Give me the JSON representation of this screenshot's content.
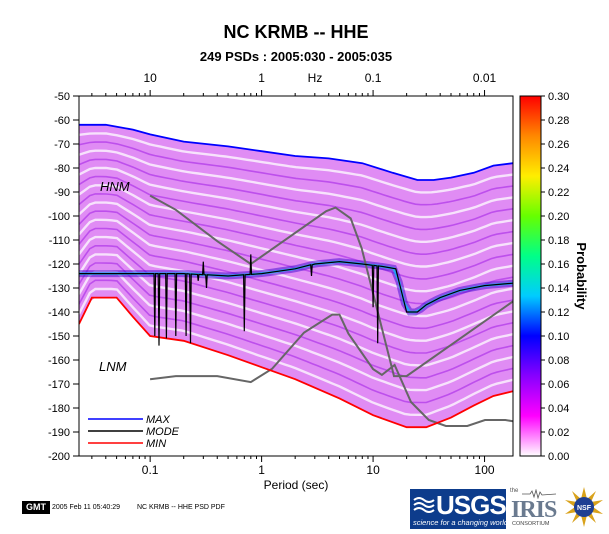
{
  "chart_data": {
    "type": "heatmap",
    "title": "NC KRMB -- HHE",
    "subtitle": "249 PSDs : 2005:030 - 2005:035",
    "xlabel": "Period (sec)",
    "top_xlabel": "Hz",
    "ylabel": "",
    "xscale": "log",
    "xlim": [
      0.023,
      180
    ],
    "ylim": [
      -200,
      -50
    ],
    "x_ticks": [
      {
        "value": 0.1,
        "label": "0.1"
      },
      {
        "value": 1,
        "label": "1"
      },
      {
        "value": 10,
        "label": "10"
      },
      {
        "value": 100,
        "label": "100"
      }
    ],
    "top_ticks": [
      {
        "period": 0.1,
        "label": "10"
      },
      {
        "period": 1,
        "label": "1"
      },
      {
        "period": 10,
        "label": "0.1"
      },
      {
        "period": 100,
        "label": "0.01"
      }
    ],
    "y_ticks": [
      -50,
      -60,
      -70,
      -80,
      -90,
      -100,
      -110,
      -120,
      -130,
      -140,
      -150,
      -160,
      -170,
      -180,
      -190,
      -200
    ],
    "colorbar": {
      "label": "Probability",
      "range": [
        0,
        0.3
      ],
      "ticks": [
        "0.30",
        "0.28",
        "0.26",
        "0.24",
        "0.22",
        "0.20",
        "0.18",
        "0.16",
        "0.14",
        "0.12",
        "0.10",
        "0.08",
        "0.06",
        "0.04",
        "0.02",
        "0.00"
      ],
      "colors": [
        "#ffffff",
        "#ff00ff",
        "#8800ff",
        "#0000ff",
        "#00ccff",
        "#00ff88",
        "#66ff00",
        "#ffee00",
        "#ff8800",
        "#ff0000"
      ]
    },
    "legend": {
      "placement": "bottom-left",
      "entries": [
        {
          "label": "MAX",
          "color": "#0000ff"
        },
        {
          "label": "MODE",
          "color": "#000000"
        },
        {
          "label": "MIN",
          "color": "#ff0000"
        }
      ]
    },
    "annotations": [
      {
        "text": "HNM"
      },
      {
        "text": "LNM"
      }
    ],
    "series": [
      {
        "name": "MAX",
        "color": "#0000ff",
        "x": [
          0.023,
          0.04,
          0.07,
          0.1,
          0.2,
          0.5,
          1,
          2,
          4,
          8,
          15,
          25,
          35,
          50,
          80,
          120,
          180
        ],
        "y": [
          -62,
          -62,
          -64,
          -66,
          -69,
          -71,
          -73,
          -75,
          -76,
          -78,
          -82,
          -85,
          -85,
          -84,
          -82,
          -79,
          -78
        ]
      },
      {
        "name": "MODE",
        "color": "#000000",
        "x": [
          0.023,
          0.05,
          0.1,
          0.2,
          0.5,
          1,
          2,
          3,
          5,
          8,
          12,
          16,
          20,
          25,
          30,
          40,
          60,
          100,
          180
        ],
        "y": [
          -124,
          -124,
          -124,
          -124,
          -125,
          -124,
          -122,
          -120,
          -119,
          -120,
          -121,
          -122,
          -140,
          -140,
          -137,
          -134,
          -131,
          -129,
          -128
        ]
      },
      {
        "name": "MIN",
        "color": "#ff0000",
        "x": [
          0.023,
          0.03,
          0.05,
          0.07,
          0.1,
          0.2,
          0.5,
          1,
          2,
          5,
          10,
          20,
          30,
          50,
          80,
          120,
          180
        ],
        "y": [
          -145,
          -134,
          -134,
          -142,
          -150,
          -152,
          -158,
          -163,
          -168,
          -176,
          -183,
          -188,
          -188,
          -184,
          -179,
          -175,
          -173
        ]
      },
      {
        "name": "HNM",
        "color": "#666666",
        "x": [
          0.1,
          0.17,
          0.4,
          0.8,
          3.8,
          4.6,
          6.3,
          7.9,
          15.4,
          20,
          354
        ],
        "y": [
          -91.5,
          -97.4,
          -110.5,
          -120,
          -98,
          -96.5,
          -101,
          -113.5,
          -166.7,
          -166.7,
          -126
        ]
      },
      {
        "name": "LNM",
        "color": "#666666",
        "x": [
          0.1,
          0.17,
          0.4,
          0.8,
          1.24,
          2.4,
          4.3,
          5,
          6,
          10,
          12,
          15.6,
          21.9,
          31.6,
          45,
          70,
          101,
          154,
          328
        ],
        "y": [
          -168,
          -166.7,
          -166.7,
          -169.2,
          -163.7,
          -148.6,
          -141.1,
          -141.1,
          -149,
          -163.8,
          -166.2,
          -162.1,
          -177.5,
          -185,
          -187.5,
          -187.5,
          -185,
          -185,
          -187.5
        ]
      }
    ],
    "mode_drops": [
      {
        "x": 0.11,
        "to": -150
      },
      {
        "x": 0.12,
        "to": -154
      },
      {
        "x": 0.14,
        "to": -151
      },
      {
        "x": 0.17,
        "to": -150
      },
      {
        "x": 0.21,
        "to": -150
      },
      {
        "x": 0.23,
        "to": -153
      },
      {
        "x": 0.27,
        "to": -127
      },
      {
        "x": 0.3,
        "to": -119
      },
      {
        "x": 0.32,
        "to": -130
      },
      {
        "x": 0.7,
        "to": -148
      },
      {
        "x": 0.8,
        "to": -116
      },
      {
        "x": 2.8,
        "to": -125
      },
      {
        "x": 10,
        "to": -138
      },
      {
        "x": 11,
        "to": -153
      }
    ]
  },
  "footer": {
    "gmt_label": "GMT",
    "timestamp": "2005 Feb 11 05:40:29",
    "plot_name": "NC KRMB -- HHE PSD PDF"
  },
  "logos": {
    "usgs_word": "USGS",
    "usgs_tagline": "science for a changing world",
    "iris_prefix": "the",
    "iris_word": "IRIS",
    "iris_sub": "CONSORTIUM",
    "nsf_word": "NSF"
  }
}
